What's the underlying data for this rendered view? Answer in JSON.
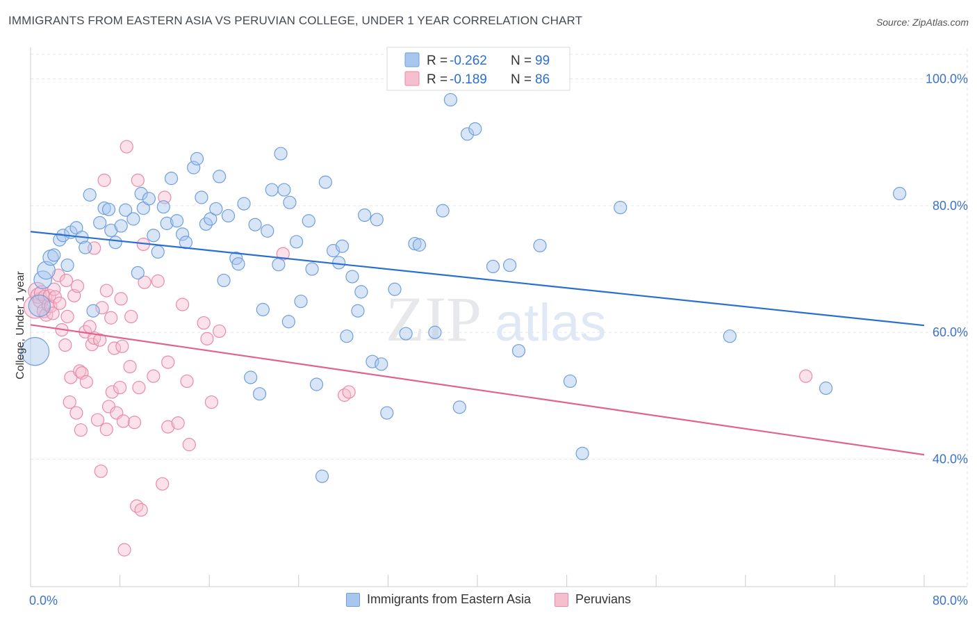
{
  "header": {
    "title": "IMMIGRANTS FROM EASTERN ASIA VS PERUVIAN COLLEGE, UNDER 1 YEAR CORRELATION CHART",
    "source": "Source: ZipAtlas.com"
  },
  "watermark": {
    "zip": "ZIP",
    "atlas": "atlas"
  },
  "colors": {
    "blue": "#6e9fdc",
    "blue_fill": "#a9c6ee",
    "blue_line": "#2a6fcf",
    "pink": "#e88aa8",
    "pink_fill": "#f6bfd0",
    "pink_line": "#e0638f",
    "tick_label": "#3c72c8"
  },
  "legend_box": {
    "rows": [
      {
        "r_label": "R = ",
        "r_value": "-0.262",
        "n_label": "N = ",
        "n_value": "99"
      },
      {
        "r_label": "R = ",
        "r_value": "-0.189",
        "n_label": "N = ",
        "n_value": "86"
      }
    ]
  },
  "bottom_legend": {
    "series1": "Immigrants from Eastern Asia",
    "series2": "Peruvians"
  },
  "chart_data": {
    "type": "scatter",
    "title": "IMMIGRANTS FROM EASTERN ASIA VS PERUVIAN COLLEGE, UNDER 1 YEAR CORRELATION CHART",
    "xlabel": "",
    "ylabel": "College, Under 1 year",
    "xlim": [
      0,
      80
    ],
    "ylim": [
      20,
      104
    ],
    "x_tick_labels": {
      "min": "0.0%",
      "max": "80.0%"
    },
    "y_ticks": [
      100,
      80,
      60,
      40
    ],
    "y_tick_labels": [
      "100.0%",
      "80.0%",
      "60.0%",
      "40.0%"
    ],
    "series": [
      {
        "name": "Immigrants from Eastern Asia",
        "r": -0.262,
        "n": 99,
        "trend": {
          "x": [
            0,
            80
          ],
          "y": [
            75.9,
            61.1
          ]
        },
        "points": [
          [
            0.4,
            57.0,
            5
          ],
          [
            0.8,
            64.2,
            3
          ],
          [
            1.1,
            68.3,
            2
          ],
          [
            1.4,
            69.8,
            2
          ],
          [
            1.8,
            71.8,
            1.5
          ],
          [
            2.1,
            72.2,
            1
          ],
          [
            2.6,
            74.6,
            1
          ],
          [
            2.9,
            75.3,
            1
          ],
          [
            3.3,
            70.6,
            1
          ],
          [
            3.6,
            75.8,
            1
          ],
          [
            4.1,
            76.5,
            1
          ],
          [
            4.6,
            75.0,
            1
          ],
          [
            4.9,
            73.4,
            1
          ],
          [
            5.3,
            81.7,
            1
          ],
          [
            5.6,
            63.4,
            1
          ],
          [
            6.2,
            77.3,
            1
          ],
          [
            6.6,
            79.6,
            1
          ],
          [
            7.0,
            79.4,
            1
          ],
          [
            7.2,
            76.1,
            1
          ],
          [
            7.6,
            74.2,
            1
          ],
          [
            8.1,
            76.8,
            1
          ],
          [
            8.5,
            79.3,
            1
          ],
          [
            9.2,
            77.9,
            1
          ],
          [
            9.6,
            69.4,
            1
          ],
          [
            9.9,
            81.9,
            1
          ],
          [
            10.1,
            79.6,
            1
          ],
          [
            10.6,
            81.1,
            1
          ],
          [
            11.0,
            75.3,
            1
          ],
          [
            11.4,
            72.7,
            1
          ],
          [
            11.9,
            79.8,
            1
          ],
          [
            12.2,
            77.2,
            1
          ],
          [
            12.6,
            84.3,
            1
          ],
          [
            13.1,
            77.6,
            1
          ],
          [
            13.6,
            75.5,
            1
          ],
          [
            13.9,
            74.2,
            1
          ],
          [
            14.6,
            86.0,
            1
          ],
          [
            14.9,
            87.4,
            1
          ],
          [
            15.3,
            81.3,
            1
          ],
          [
            15.7,
            77.1,
            1
          ],
          [
            16.1,
            77.9,
            1
          ],
          [
            16.6,
            79.5,
            1
          ],
          [
            16.9,
            84.6,
            1
          ],
          [
            17.3,
            68.2,
            1
          ],
          [
            17.7,
            78.4,
            1
          ],
          [
            18.4,
            71.7,
            1
          ],
          [
            18.6,
            70.8,
            1
          ],
          [
            19.1,
            80.3,
            1
          ],
          [
            19.7,
            52.9,
            1
          ],
          [
            20.1,
            77.0,
            1
          ],
          [
            20.5,
            50.3,
            1
          ],
          [
            20.8,
            63.6,
            1
          ],
          [
            21.2,
            76.0,
            1
          ],
          [
            21.6,
            82.5,
            1
          ],
          [
            22.2,
            70.7,
            1
          ],
          [
            22.4,
            88.2,
            1
          ],
          [
            22.7,
            82.5,
            1
          ],
          [
            23.1,
            61.7,
            1
          ],
          [
            23.2,
            80.5,
            1
          ],
          [
            23.8,
            74.3,
            1
          ],
          [
            24.2,
            64.9,
            1
          ],
          [
            24.9,
            77.6,
            1
          ],
          [
            25.2,
            70.0,
            1
          ],
          [
            25.6,
            51.8,
            1
          ],
          [
            26.1,
            37.3,
            1
          ],
          [
            26.4,
            83.7,
            1
          ],
          [
            27.1,
            72.9,
            1
          ],
          [
            27.6,
            71.0,
            1
          ],
          [
            27.9,
            73.6,
            1
          ],
          [
            28.3,
            59.4,
            1
          ],
          [
            28.8,
            68.8,
            1
          ],
          [
            29.3,
            63.4,
            1
          ],
          [
            29.6,
            66.4,
            1
          ],
          [
            29.9,
            78.5,
            1
          ],
          [
            30.6,
            55.4,
            1
          ],
          [
            31.0,
            77.8,
            1
          ],
          [
            31.4,
            55.0,
            1
          ],
          [
            31.9,
            47.3,
            1
          ],
          [
            32.6,
            66.8,
            1
          ],
          [
            33.6,
            59.8,
            1
          ],
          [
            34.4,
            74.0,
            1
          ],
          [
            34.8,
            73.8,
            1
          ],
          [
            36.2,
            60.0,
            1
          ],
          [
            36.9,
            79.2,
            1
          ],
          [
            37.6,
            96.7,
            1
          ],
          [
            38.4,
            48.2,
            1
          ],
          [
            39.1,
            91.3,
            1
          ],
          [
            39.8,
            92.1,
            1
          ],
          [
            41.4,
            70.4,
            1
          ],
          [
            42.9,
            70.6,
            1
          ],
          [
            43.7,
            57.1,
            1
          ],
          [
            45.6,
            73.7,
            1
          ],
          [
            48.3,
            52.3,
            1
          ],
          [
            49.4,
            40.9,
            1
          ],
          [
            52.8,
            79.7,
            1
          ],
          [
            62.6,
            59.4,
            1
          ],
          [
            71.2,
            51.2,
            1
          ],
          [
            77.8,
            81.9,
            1
          ]
        ]
      },
      {
        "name": "Peruvians",
        "r": -0.189,
        "n": 86,
        "trend": {
          "x": [
            0,
            80
          ],
          "y": [
            61.2,
            40.7
          ]
        },
        "points": [
          [
            0.4,
            64.0,
            3.2
          ],
          [
            0.6,
            66.5,
            2
          ],
          [
            0.7,
            65.8,
            1.5
          ],
          [
            0.9,
            65.1,
            1.5
          ],
          [
            1.0,
            66.2,
            1.4
          ],
          [
            1.2,
            63.4,
            1.2
          ],
          [
            1.3,
            65.6,
            1.2
          ],
          [
            1.4,
            62.8,
            1.1
          ],
          [
            1.6,
            64.3,
            1.1
          ],
          [
            1.7,
            65.8,
            1
          ],
          [
            1.8,
            64.1,
            1
          ],
          [
            2.0,
            63.0,
            1
          ],
          [
            2.1,
            66.8,
            1
          ],
          [
            2.2,
            65.6,
            1
          ],
          [
            2.5,
            69.0,
            1
          ],
          [
            2.6,
            64.6,
            1
          ],
          [
            2.8,
            60.4,
            1
          ],
          [
            3.1,
            58.0,
            1
          ],
          [
            3.2,
            68.2,
            1
          ],
          [
            3.3,
            62.5,
            1
          ],
          [
            3.5,
            49.0,
            1
          ],
          [
            3.6,
            52.9,
            1
          ],
          [
            3.9,
            65.8,
            1
          ],
          [
            4.1,
            47.3,
            1
          ],
          [
            4.2,
            67.3,
            1
          ],
          [
            4.4,
            53.9,
            1
          ],
          [
            4.5,
            44.6,
            1
          ],
          [
            4.6,
            53.6,
            1
          ],
          [
            4.9,
            60.1,
            1
          ],
          [
            5.0,
            52.2,
            1
          ],
          [
            5.3,
            60.9,
            1
          ],
          [
            5.5,
            58.1,
            1
          ],
          [
            5.7,
            59.1,
            1
          ],
          [
            5.7,
            73.3,
            1
          ],
          [
            6.0,
            46.2,
            1
          ],
          [
            6.2,
            58.8,
            1
          ],
          [
            6.3,
            38.1,
            1
          ],
          [
            6.4,
            63.9,
            1
          ],
          [
            6.6,
            84.0,
            1
          ],
          [
            6.8,
            44.7,
            1
          ],
          [
            6.8,
            66.6,
            1
          ],
          [
            7.0,
            48.3,
            1
          ],
          [
            7.2,
            62.3,
            1
          ],
          [
            7.3,
            50.6,
            1
          ],
          [
            7.5,
            57.5,
            1
          ],
          [
            7.7,
            47.3,
            1
          ],
          [
            8.0,
            51.3,
            1
          ],
          [
            8.1,
            65.3,
            1
          ],
          [
            8.2,
            57.8,
            1
          ],
          [
            8.3,
            46.0,
            1
          ],
          [
            8.4,
            25.7,
            1
          ],
          [
            8.6,
            89.3,
            1
          ],
          [
            8.9,
            54.6,
            1
          ],
          [
            9.0,
            62.5,
            1
          ],
          [
            9.3,
            45.8,
            1
          ],
          [
            9.5,
            32.6,
            1
          ],
          [
            9.6,
            84.0,
            1
          ],
          [
            9.7,
            51.3,
            1
          ],
          [
            9.9,
            32.0,
            1
          ],
          [
            10.1,
            73.9,
            1
          ],
          [
            10.2,
            67.9,
            1
          ],
          [
            11.0,
            53.1,
            1
          ],
          [
            11.4,
            68.1,
            1
          ],
          [
            11.8,
            36.1,
            1
          ],
          [
            12.0,
            81.3,
            1
          ],
          [
            12.3,
            45.1,
            1
          ],
          [
            12.3,
            55.3,
            1
          ],
          [
            13.2,
            45.7,
            1
          ],
          [
            13.6,
            64.4,
            1
          ],
          [
            14.0,
            52.3,
            1
          ],
          [
            14.2,
            42.3,
            1
          ],
          [
            15.5,
            61.5,
            1
          ],
          [
            15.8,
            59.0,
            1
          ],
          [
            16.2,
            49.0,
            1
          ],
          [
            16.9,
            60.2,
            1
          ],
          [
            22.6,
            72.4,
            1
          ],
          [
            28.1,
            50.1,
            1
          ],
          [
            28.5,
            50.6,
            1
          ],
          [
            69.4,
            53.1,
            1
          ]
        ]
      }
    ]
  }
}
